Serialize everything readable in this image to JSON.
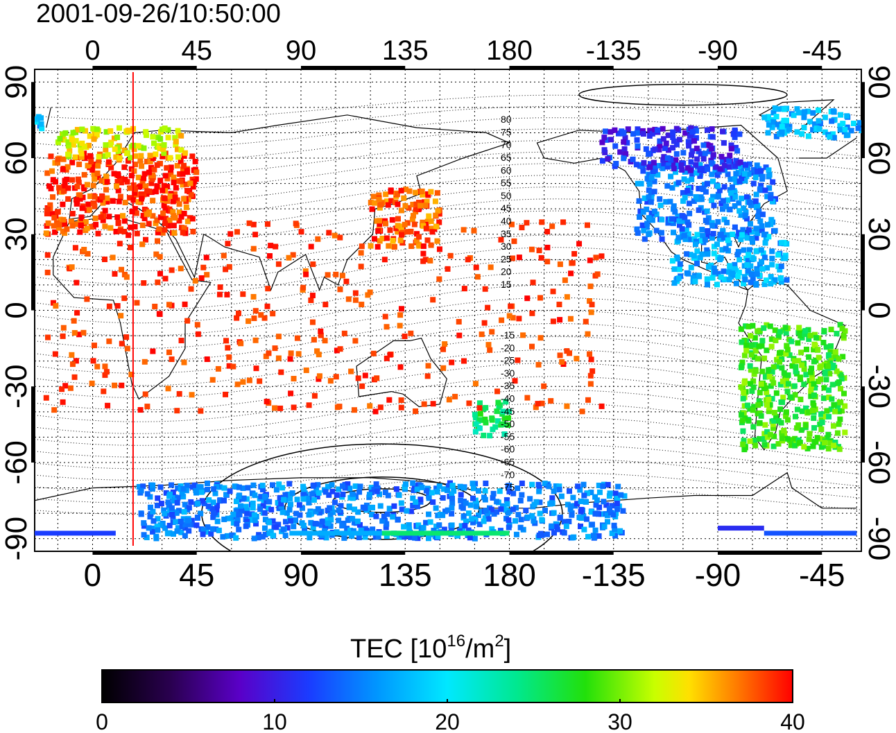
{
  "map": {
    "timestamp": "2001-09-26/10:50:00",
    "lon_ticks": [
      "0",
      "45",
      "90",
      "135",
      "180",
      "-135",
      "-90",
      "-45"
    ],
    "lat_ticks": [
      "90",
      "60",
      "30",
      "0",
      "-30",
      "-60",
      "-90"
    ],
    "contour_labels": {
      "north": [
        "80",
        "75",
        "70",
        "65",
        "60",
        "55",
        "50",
        "45",
        "40",
        "35",
        "30",
        "25",
        "20",
        "15"
      ],
      "south": [
        "-15",
        "-20",
        "-25",
        "-30",
        "-35",
        "-40",
        "-45",
        "-50",
        "-55",
        "-60",
        "-65",
        "-70",
        "-75"
      ]
    },
    "terminator_longitude": 17.5,
    "lon_range": [
      -25,
      332
    ],
    "lat_range": [
      -95,
      95
    ],
    "colorbar": {
      "title_prefix": "TEC  [10",
      "title_exp1": "16",
      "title_mid": "/m",
      "title_exp2": "2",
      "title_suffix": "]",
      "ticks": [
        "0",
        "10",
        "20",
        "30",
        "40"
      ],
      "min": 0,
      "max": 40
    },
    "colors": {
      "red": "#ff1a00",
      "orange": "#ff8c00",
      "yellow": "#e6ff00",
      "green": "#22e00a",
      "cyan": "#00e5ff",
      "blue": "#1a3cff",
      "purple": "#5a00c8",
      "terminator": "#ff0000"
    },
    "tec_regions": [
      {
        "name": "europe",
        "lon": [
          -20,
          45
        ],
        "lat": [
          30,
          62
        ],
        "tec": 39
      },
      {
        "name": "scandinavia",
        "lon": [
          -15,
          40
        ],
        "lat": [
          60,
          72
        ],
        "tec": 33
      },
      {
        "name": "japan-east-asia",
        "lon": [
          120,
          150
        ],
        "lat": [
          25,
          48
        ],
        "tec": 38
      },
      {
        "name": "north-america",
        "lon": [
          -125,
          -65
        ],
        "lat": [
          28,
          58
        ],
        "tec": 15
      },
      {
        "name": "canada",
        "lon": [
          -140,
          -80
        ],
        "lat": [
          55,
          72
        ],
        "tec": 11
      },
      {
        "name": "greenland-arctic",
        "lon": [
          -70,
          -20
        ],
        "lat": [
          68,
          80
        ],
        "tec": 17
      },
      {
        "name": "central-america",
        "lon": [
          -110,
          -60
        ],
        "lat": [
          10,
          30
        ],
        "tec": 17
      },
      {
        "name": "south-america",
        "lon": [
          -80,
          -35
        ],
        "lat": [
          -55,
          -5
        ],
        "tec": 28
      },
      {
        "name": "new-zealand",
        "lon": [
          165,
          180
        ],
        "lat": [
          -50,
          -35
        ],
        "tec": 25
      },
      {
        "name": "antarctica",
        "lon": [
          20,
          230
        ],
        "lat": [
          -90,
          -68
        ],
        "tec": 15
      }
    ]
  }
}
